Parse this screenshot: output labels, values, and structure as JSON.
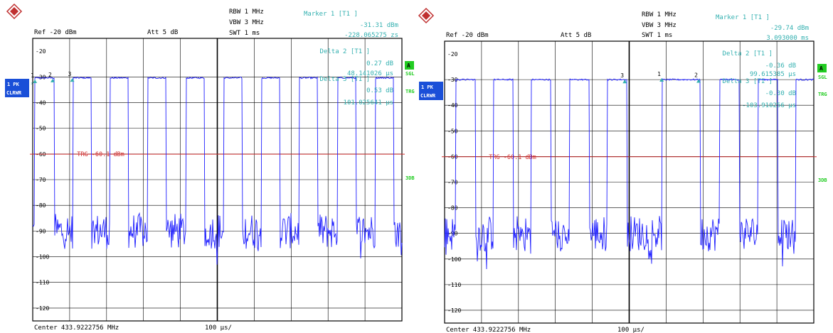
{
  "chart_data": [
    {
      "type": "line",
      "header": {
        "ref": "Ref  -20 dBm",
        "att": "Att   5 dB",
        "rbw": "RBW  1 MHz",
        "vbw": "VBW  3 MHz",
        "swt": "SWT  1 ms",
        "marker_title": "Marker 1 [T1 ]",
        "marker_value": "-31.31 dBm",
        "marker_pos": "-228.065275 zs"
      },
      "deltas": [
        {
          "title": "Delta 2 [T1 ]",
          "value": "0.27 dB",
          "pos": "48.141026 µs"
        },
        {
          "title": "Delta 3 [T1 ]",
          "value": "0.53 dB",
          "pos": "101.025641 µs"
        }
      ],
      "left_labels": {
        "trace": "1 PK",
        "mode": "CLRWR",
        "star": "*"
      },
      "right_labels": {
        "a": "A",
        "sgl": "SGL",
        "trg": "TRG",
        "threedb": "3DB"
      },
      "trigger_label": "TRG  -60.1  dBm",
      "trigger_level": -60.1,
      "ylim": [
        -125,
        -15
      ],
      "yticks": [
        -20,
        -30,
        -40,
        -50,
        -60,
        -70,
        -80,
        -90,
        -100,
        -110,
        -120
      ],
      "xlim": [
        0,
        1000
      ],
      "footer": {
        "center": "Center 433.9222756 MHz",
        "span": "100 µs/"
      },
      "markers": [
        {
          "label": "1",
          "x": 6,
          "y": -31.3
        },
        {
          "label": "2",
          "x": 54,
          "y": -31.0
        },
        {
          "label": "3",
          "x": 107,
          "y": -30.8
        }
      ],
      "pulses": [
        [
          5,
          58
        ],
        [
          108,
          158
        ],
        [
          210,
          260
        ],
        [
          312,
          362
        ],
        [
          415,
          465
        ],
        [
          518,
          568
        ],
        [
          620,
          670
        ],
        [
          722,
          772
        ],
        [
          825,
          875
        ],
        [
          928,
          978
        ]
      ],
      "pulse_level": -30.4,
      "noise_floor": -90,
      "colors": {
        "trace": "#2020ff",
        "grid": "#000000",
        "annot": "#33b0b0",
        "trigger": "#d03030",
        "badge": "#1a4fd8",
        "status": "#22cc22"
      }
    },
    {
      "type": "line",
      "header": {
        "ref": "Ref  -20 dBm",
        "att": "Att   5 dB",
        "rbw": "RBW  1 MHz",
        "vbw": "VBW  3 MHz",
        "swt": "SWT  1 ms",
        "marker_title": "Marker 1 [T1 ]",
        "marker_value": "-29.74 dBm",
        "marker_pos": "3.093000 ms"
      },
      "deltas": [
        {
          "title": "Delta 2 [T1 ]",
          "value": "-0.36 dB",
          "pos": "99.615385 µs"
        },
        {
          "title": "Delta 3 [T1 ]",
          "value": "-0.30 dB",
          "pos": "-103.910256 µs"
        }
      ],
      "left_labels": {
        "trace": "1 PK",
        "mode": "CLRWR",
        "star": "*"
      },
      "right_labels": {
        "a": "A",
        "sgl": "SGL",
        "trg": "TRG",
        "threedb": "3DB"
      },
      "trigger_label": "TRG  -60.1  dBm",
      "trigger_level": -60.1,
      "ylim": [
        -125,
        -15
      ],
      "yticks": [
        -20,
        -30,
        -40,
        -50,
        -60,
        -70,
        -80,
        -90,
        -100,
        -110,
        -120
      ],
      "xlim": [
        0,
        1000
      ],
      "footer": {
        "center": "Center 433.9222756 MHz",
        "span": "100 µs/"
      },
      "markers": [
        {
          "label": "3",
          "x": 488,
          "y": -30.3
        },
        {
          "label": "1",
          "x": 588,
          "y": -29.7
        },
        {
          "label": "2",
          "x": 688,
          "y": -30.1
        }
      ],
      "pulses": [
        [
          30,
          84
        ],
        [
          132,
          186
        ],
        [
          235,
          289
        ],
        [
          338,
          392
        ],
        [
          440,
          494
        ],
        [
          588,
          600
        ],
        [
          600,
          692
        ],
        [
          745,
          799
        ],
        [
          848,
          902
        ],
        [
          950,
          1004
        ]
      ],
      "pulse_level": -30.0,
      "noise_floor": -90,
      "colors": {
        "trace": "#2020ff",
        "grid": "#000000",
        "annot": "#33b0b0",
        "trigger": "#d03030",
        "badge": "#1a4fd8",
        "status": "#22cc22"
      }
    }
  ]
}
